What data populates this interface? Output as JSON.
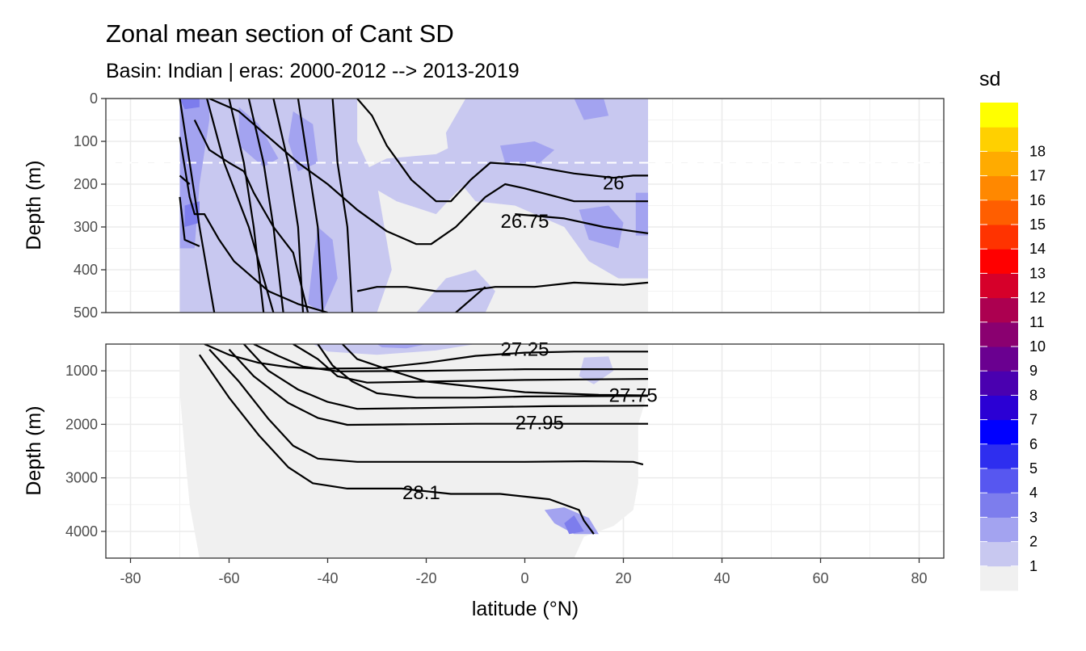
{
  "title": "Zonal mean section of Cant SD",
  "subtitle": "Basin: Indian | eras: 2000-2012 --> 2013-2019",
  "chart_data": {
    "type": "heatmap",
    "title": "Zonal mean section of Cant SD",
    "subtitle": "Basin: Indian | eras: 2000-2012 --> 2013-2019",
    "xlabel": "latitude (°N)",
    "ylabel": "Depth (m)",
    "xlim": [
      -85,
      85
    ],
    "x_ticks": [
      "-80",
      "-60",
      "-40",
      "-20",
      "0",
      "20",
      "40",
      "60",
      "80"
    ],
    "panels": [
      {
        "name": "upper",
        "ylim": [
          0,
          500
        ],
        "y_ticks": [
          "0",
          "100",
          "200",
          "300",
          "400",
          "500"
        ],
        "reference_depth": 150
      },
      {
        "name": "lower",
        "ylim": [
          500,
          4500
        ],
        "y_ticks": [
          "1000",
          "2000",
          "3000",
          "4000"
        ]
      }
    ],
    "data_extent": {
      "lat_min": -70,
      "lat_max": 25
    },
    "legend": {
      "title": "sd",
      "position": "right",
      "labels": [
        "1",
        "2",
        "3",
        "4",
        "5",
        "6",
        "7",
        "8",
        "9",
        "10",
        "11",
        "12",
        "13",
        "14",
        "15",
        "16",
        "17",
        "18"
      ],
      "colors": [
        "#f0f0f0",
        "#c8c8f0",
        "#a3a3f0",
        "#7d7ded",
        "#5757f0",
        "#2e2eef",
        "#0000ff",
        "#2b00d4",
        "#4a00b0",
        "#6a0090",
        "#8a0070",
        "#ac0050",
        "#d6002a",
        "#ff0000",
        "#ff3300",
        "#ff5e00",
        "#ff8800",
        "#ffab00",
        "#ffd000",
        "#ffff00"
      ]
    },
    "isopycnal_labels": [
      {
        "label": "26",
        "lat": 18,
        "depth": 200
      },
      {
        "label": "26.75",
        "lat": 0,
        "depth": 290
      },
      {
        "label": "27.25",
        "lat": 0,
        "depth": 620
      },
      {
        "label": "27.75",
        "lat": 22,
        "depth": 1480
      },
      {
        "label": "27.95",
        "lat": 3,
        "depth": 2000
      },
      {
        "label": "28.1",
        "lat": -21,
        "depth": 3300
      }
    ]
  }
}
